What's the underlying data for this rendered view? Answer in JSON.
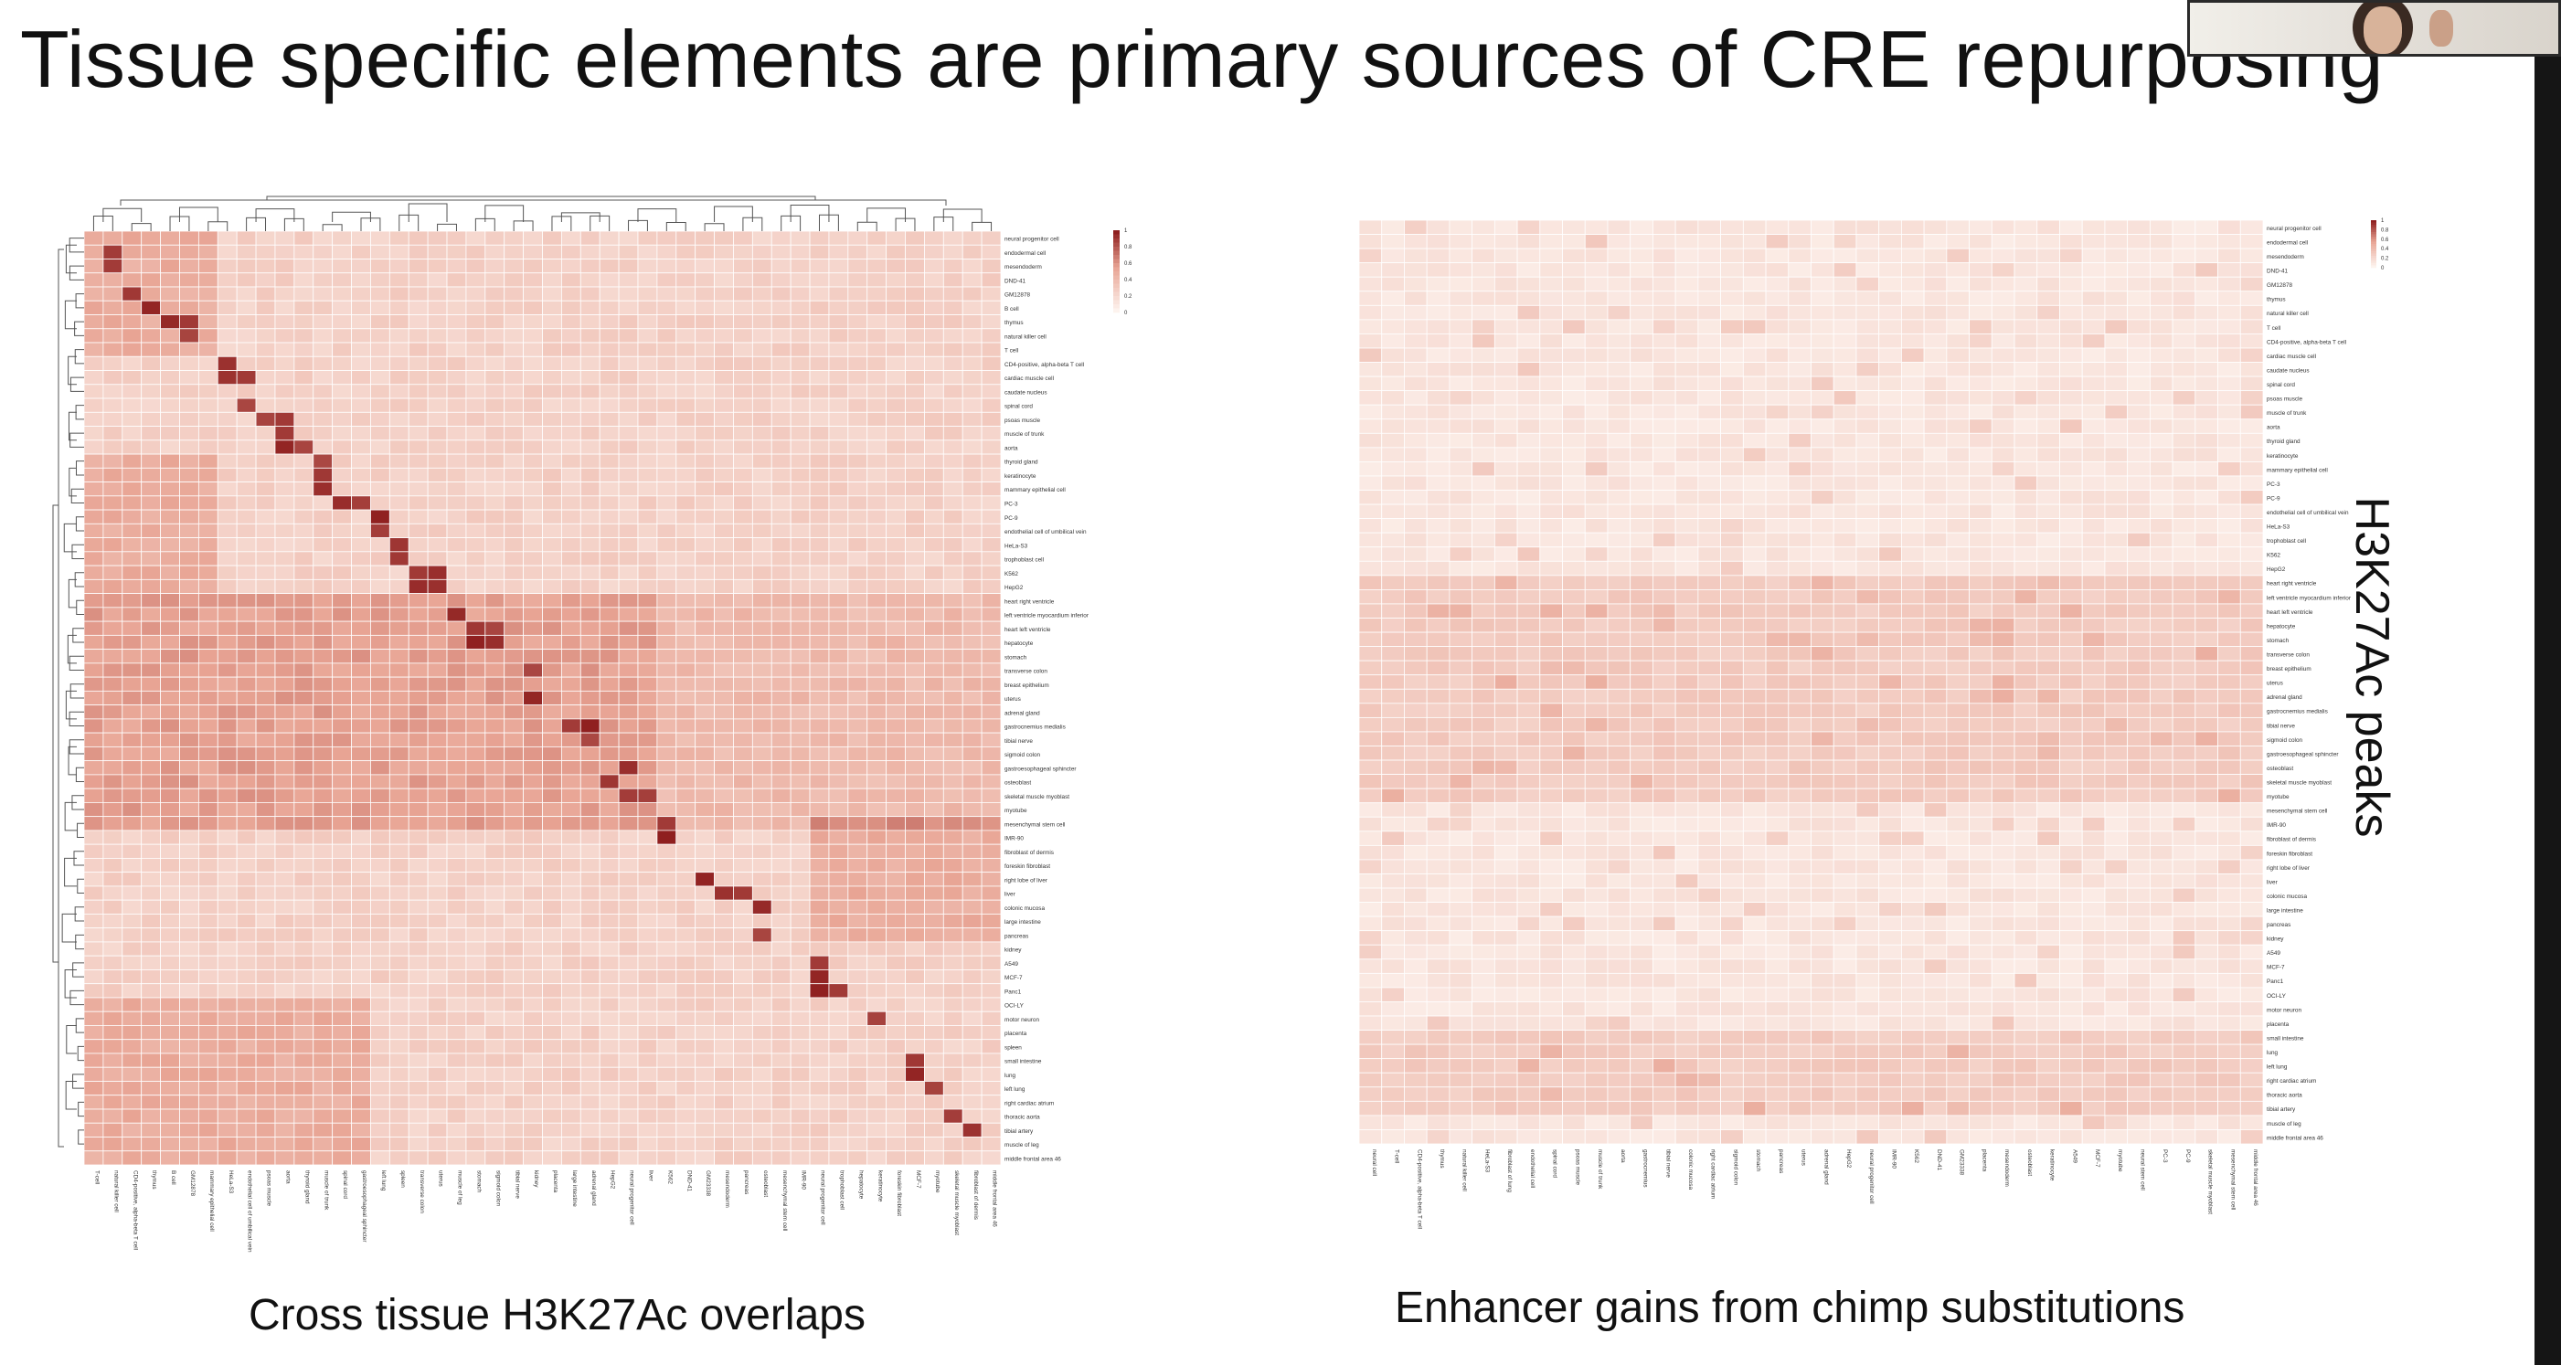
{
  "slide": {
    "title": "Tissue specific elements are primary sources of CRE repurposing",
    "left_caption": "Cross tissue H3K27Ac overlaps",
    "right_caption": "Enhancer gains from chimp substitutions",
    "side_label": "H3K27Ac peaks"
  },
  "colors": {
    "heat_low": "#fdf3ee",
    "heat_mid": "#e8a494",
    "heat_high": "#8f1f1f",
    "grid": "#ffffff"
  },
  "chart_data": [
    {
      "type": "heatmap",
      "name": "left",
      "row_labels": [
        "neural progenitor cell",
        "endodermal cell",
        "mesendoderm",
        "DND-41",
        "GM12878",
        "B cell",
        "thymus",
        "natural killer cell",
        "T cell",
        "CD4-positive, alpha-beta T cell",
        "cardiac muscle cell",
        "caudate nucleus",
        "spinal cord",
        "psoas muscle",
        "muscle of trunk",
        "aorta",
        "thyroid gland",
        "keratinocyte",
        "mammary epithelial cell",
        "PC-3",
        "PC-9",
        "endothelial cell of umbilical vein",
        "HeLa-S3",
        "trophoblast cell",
        "K562",
        "HepG2",
        "heart right ventricle",
        "left ventricle myocardium inferior",
        "heart left ventricle",
        "hepatocyte",
        "stomach",
        "transverse colon",
        "breast epithelium",
        "uterus",
        "adrenal gland",
        "gastrocnemius medialis",
        "tibial nerve",
        "sigmoid colon",
        "gastroesophageal sphincter",
        "osteoblast",
        "skeletal muscle myoblast",
        "myotube",
        "mesenchymal stem cell",
        "IMR-90",
        "fibroblast of dermis",
        "foreskin fibroblast",
        "right lobe of liver",
        "liver",
        "colonic mucosa",
        "large intestine",
        "pancreas",
        "kidney",
        "A549",
        "MCF-7",
        "Panc1",
        "OCI-LY",
        "motor neuron",
        "placenta",
        "spleen",
        "small intestine",
        "lung",
        "left lung",
        "right cardiac atrium",
        "thoracic aorta",
        "tibial artery",
        "muscle of leg",
        "middle frontal area 46"
      ],
      "col_labels": [
        "T-cell",
        "natural killer cell",
        "CD4-positive, alpha-beta T cell",
        "thymus",
        "B cell",
        "GM12878",
        "mammary epithelial cell",
        "HeLa-S3",
        "endothelial cell of umbilical vein",
        "psoas muscle",
        "aorta",
        "thyroid gland",
        "muscle of trunk",
        "spinal cord",
        "gastroesophageal sphincter",
        "left lung",
        "spleen",
        "transverse colon",
        "uterus",
        "muscle of leg",
        "stomach",
        "sigmoid colon",
        "tibial nerve",
        "kidney",
        "placenta",
        "large intestine",
        "adrenal gland",
        "HepG2",
        "neural progenitor cell",
        "liver",
        "K562",
        "DND-41",
        "GM23338",
        "mesendoderm",
        "pancreas",
        "osteoblast",
        "mesenchymal stem cell",
        "IMR-90",
        "neural progenitor cell",
        "trophoblast cell",
        "hepatocyte",
        "keratinocyte",
        "foreskin fibroblast",
        "MCF-7",
        "myotube",
        "skeletal muscle myoblast",
        "fibroblast of dermis",
        "middle frontal area 46"
      ],
      "value_range": [
        0,
        1
      ],
      "colorbar_ticks": [
        "1",
        "0.8",
        "0.6",
        "0.4",
        "0.2",
        "0"
      ]
    },
    {
      "type": "heatmap",
      "name": "right",
      "row_labels": [
        "neural progenitor cell",
        "endodermal cell",
        "mesendoderm",
        "DND-41",
        "GM12878",
        "thymus",
        "natural killer cell",
        "T cell",
        "CD4-positive, alpha-beta T cell",
        "cardiac muscle cell",
        "caudate nucleus",
        "spinal cord",
        "psoas muscle",
        "muscle of trunk",
        "aorta",
        "thyroid gland",
        "keratinocyte",
        "mammary epithelial cell",
        "PC-3",
        "PC-9",
        "endothelial cell of umbilical vein",
        "HeLa-S3",
        "trophoblast cell",
        "K562",
        "HepG2",
        "heart right ventricle",
        "left ventricle myocardium inferior",
        "heart left ventricle",
        "hepatocyte",
        "stomach",
        "transverse colon",
        "breast epithelium",
        "uterus",
        "adrenal gland",
        "gastrocnemius medialis",
        "tibial nerve",
        "sigmoid colon",
        "gastroesophageal sphincter",
        "osteoblast",
        "skeletal muscle myoblast",
        "myotube",
        "mesenchymal stem cell",
        "IMR-90",
        "fibroblast of dermis",
        "foreskin fibroblast",
        "right lobe of liver",
        "liver",
        "colonic mucosa",
        "large intestine",
        "pancreas",
        "kidney",
        "A549",
        "MCF-7",
        "Panc1",
        "OCI-LY",
        "motor neuron",
        "placenta",
        "small intestine",
        "lung",
        "left lung",
        "right cardiac atrium",
        "thoracic aorta",
        "tibial artery",
        "muscle of leg",
        "middle frontal area 46"
      ],
      "col_labels": [
        "neural cell",
        "T-cell",
        "CD4-positive, alpha-beta T cell",
        "thymus",
        "natural killer cell",
        "HeLa-S3",
        "fibroblast of lung",
        "endothelial cell",
        "spinal cord",
        "psoas muscle",
        "muscle of trunk",
        "aorta",
        "gastrocnemius",
        "tibial nerve",
        "colonic mucosa",
        "right cardiac atrium",
        "sigmoid colon",
        "stomach",
        "pancreas",
        "uterus",
        "adrenal gland",
        "HepG2",
        "neural progenitor cell",
        "IMR-90",
        "K562",
        "DND-41",
        "GM23338",
        "placenta",
        "mesendoderm",
        "osteoblast",
        "keratinocyte",
        "A549",
        "MCF-7",
        "myotube",
        "neural stem cell",
        "PC-3",
        "PC-9",
        "skeletal muscle myoblast",
        "mesenchymal stem cell",
        "middle frontal area 46"
      ],
      "value_range": [
        0,
        1
      ],
      "colorbar_ticks": [
        "1",
        "0.8",
        "0.6",
        "0.4",
        "0.2",
        "0"
      ]
    }
  ]
}
